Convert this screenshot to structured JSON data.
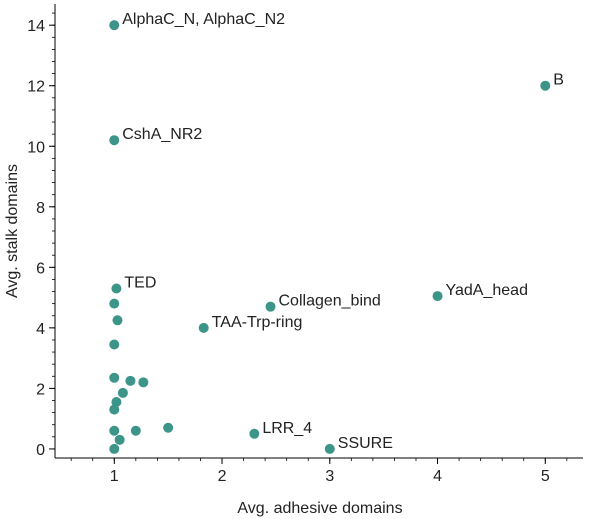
{
  "chart_data": {
    "type": "scatter",
    "xlabel": "Avg. adhesive domains",
    "ylabel": "Avg. stalk domains",
    "xlim": [
      0.45,
      5.35
    ],
    "ylim": [
      -0.3,
      14.7
    ],
    "x_ticks": [
      1,
      2,
      3,
      4,
      5
    ],
    "x_tick_labels": [
      "1",
      "2",
      "3",
      "4",
      "5"
    ],
    "x_minor_step": 0.2,
    "y_ticks": [
      0,
      2,
      4,
      6,
      8,
      10,
      12,
      14
    ],
    "y_tick_labels": [
      "0",
      "2",
      "4",
      "6",
      "8",
      "10",
      "12",
      "14"
    ],
    "y_minor_step": 0.4,
    "grid": false,
    "marker_color": "#3d9488",
    "points": [
      {
        "x": 1.0,
        "y": 14.0,
        "label": "AlphaC_N, AlphaC_N2"
      },
      {
        "x": 5.0,
        "y": 12.0,
        "label": "B"
      },
      {
        "x": 1.0,
        "y": 10.2,
        "label": "CshA_NR2"
      },
      {
        "x": 1.02,
        "y": 5.3,
        "label": "TED"
      },
      {
        "x": 2.45,
        "y": 4.7,
        "label": "Collagen_bind"
      },
      {
        "x": 4.0,
        "y": 5.05,
        "label": "YadA_head"
      },
      {
        "x": 1.83,
        "y": 4.0,
        "label": "TAA-Trp-ring"
      },
      {
        "x": 2.3,
        "y": 0.5,
        "label": "LRR_4"
      },
      {
        "x": 3.0,
        "y": 0.0,
        "label": "SSURE"
      },
      {
        "x": 1.0,
        "y": 4.8,
        "label": ""
      },
      {
        "x": 1.03,
        "y": 4.25,
        "label": ""
      },
      {
        "x": 1.0,
        "y": 3.45,
        "label": ""
      },
      {
        "x": 1.0,
        "y": 2.35,
        "label": ""
      },
      {
        "x": 1.15,
        "y": 2.25,
        "label": ""
      },
      {
        "x": 1.27,
        "y": 2.2,
        "label": ""
      },
      {
        "x": 1.08,
        "y": 1.85,
        "label": ""
      },
      {
        "x": 1.02,
        "y": 1.55,
        "label": ""
      },
      {
        "x": 1.0,
        "y": 1.3,
        "label": ""
      },
      {
        "x": 1.0,
        "y": 0.6,
        "label": ""
      },
      {
        "x": 1.2,
        "y": 0.6,
        "label": ""
      },
      {
        "x": 1.5,
        "y": 0.7,
        "label": ""
      },
      {
        "x": 1.05,
        "y": 0.3,
        "label": ""
      },
      {
        "x": 1.0,
        "y": 0.0,
        "label": ""
      }
    ]
  }
}
